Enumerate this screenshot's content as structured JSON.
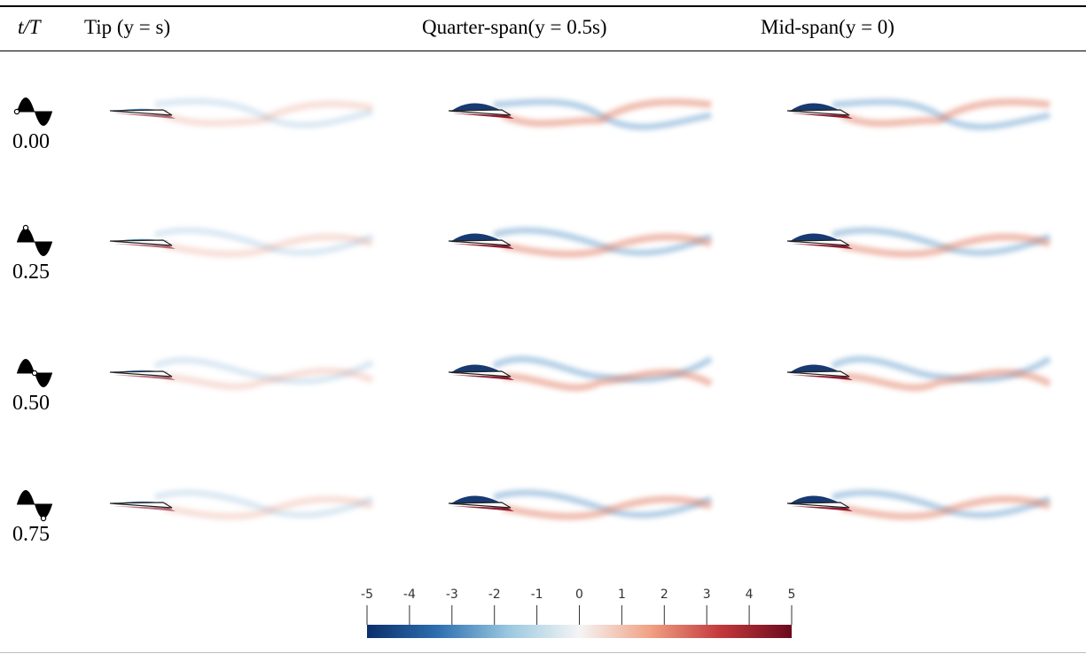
{
  "table": {
    "columns": {
      "time": "t/T",
      "tip": "Tip (y = s)",
      "quarter": "Quarter-span(y = 0.5s)",
      "mid": "Mid-span(y = 0)"
    },
    "rows": [
      {
        "label": "0.00",
        "phase": 0.0
      },
      {
        "label": "0.25",
        "phase": 0.25
      },
      {
        "label": "0.50",
        "phase": 0.5
      },
      {
        "label": "0.75",
        "phase": 0.75
      }
    ]
  },
  "colorbar": {
    "ticks": [
      "-5",
      "-4",
      "-3",
      "-2",
      "-1",
      "0",
      "1",
      "2",
      "3",
      "4",
      "5"
    ],
    "min": -5,
    "max": 5,
    "colors": [
      "#0c2f6a",
      "#2d6fb0",
      "#9ac8e0",
      "#f5f5f5",
      "#f1a184",
      "#c2383b",
      "#6a0a1e"
    ]
  }
}
